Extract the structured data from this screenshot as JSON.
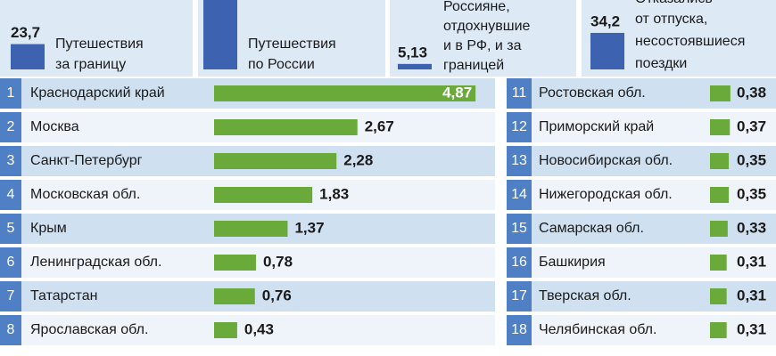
{
  "chart_data": {
    "type": "bar",
    "legend": [
      {
        "lines": [
          "Путешествия",
          "за границу"
        ],
        "value": 23.7,
        "value_label": "23,7"
      },
      {
        "lines": [
          "Путешествия",
          "по России"
        ]
      },
      {
        "lines": [
          "Россияне,",
          "отдохнувшие",
          "и в РФ, и за",
          "границей"
        ],
        "value": 5.13,
        "value_label": "5,13"
      },
      {
        "lines": [
          "Отказались",
          "от отпуска,",
          "несостоявшиеся",
          "поездки"
        ],
        "value": 34.2,
        "value_label": "34,2"
      }
    ],
    "color": "#6aaa3a",
    "ranks": [
      1,
      2,
      3,
      4,
      5,
      6,
      7,
      8,
      11,
      12,
      13,
      14,
      15,
      16,
      17,
      18
    ],
    "categories": [
      "Краснодарский край",
      "Москва",
      "Санкт-Петербург",
      "Московская обл.",
      "Крым",
      "Ленинградская обл.",
      "Татарстан",
      "Ярославская обл.",
      "Ростовская обл.",
      "Приморский край",
      "Новосибирская обл.",
      "Нижегородская обл.",
      "Самарская обл.",
      "Башкирия",
      "Тверская обл.",
      "Челябинская обл."
    ],
    "values": [
      4.87,
      2.67,
      2.28,
      1.83,
      1.37,
      0.78,
      0.76,
      0.43,
      0.38,
      0.37,
      0.35,
      0.35,
      0.33,
      0.31,
      0.31,
      0.31
    ],
    "value_labels": [
      "4,87",
      "2,67",
      "2,28",
      "1,83",
      "1,37",
      "0,78",
      "0,76",
      "0,43",
      "0,38",
      "0,37",
      "0,35",
      "0,35",
      "0,33",
      "0,31",
      "0,31",
      "0,31"
    ]
  }
}
